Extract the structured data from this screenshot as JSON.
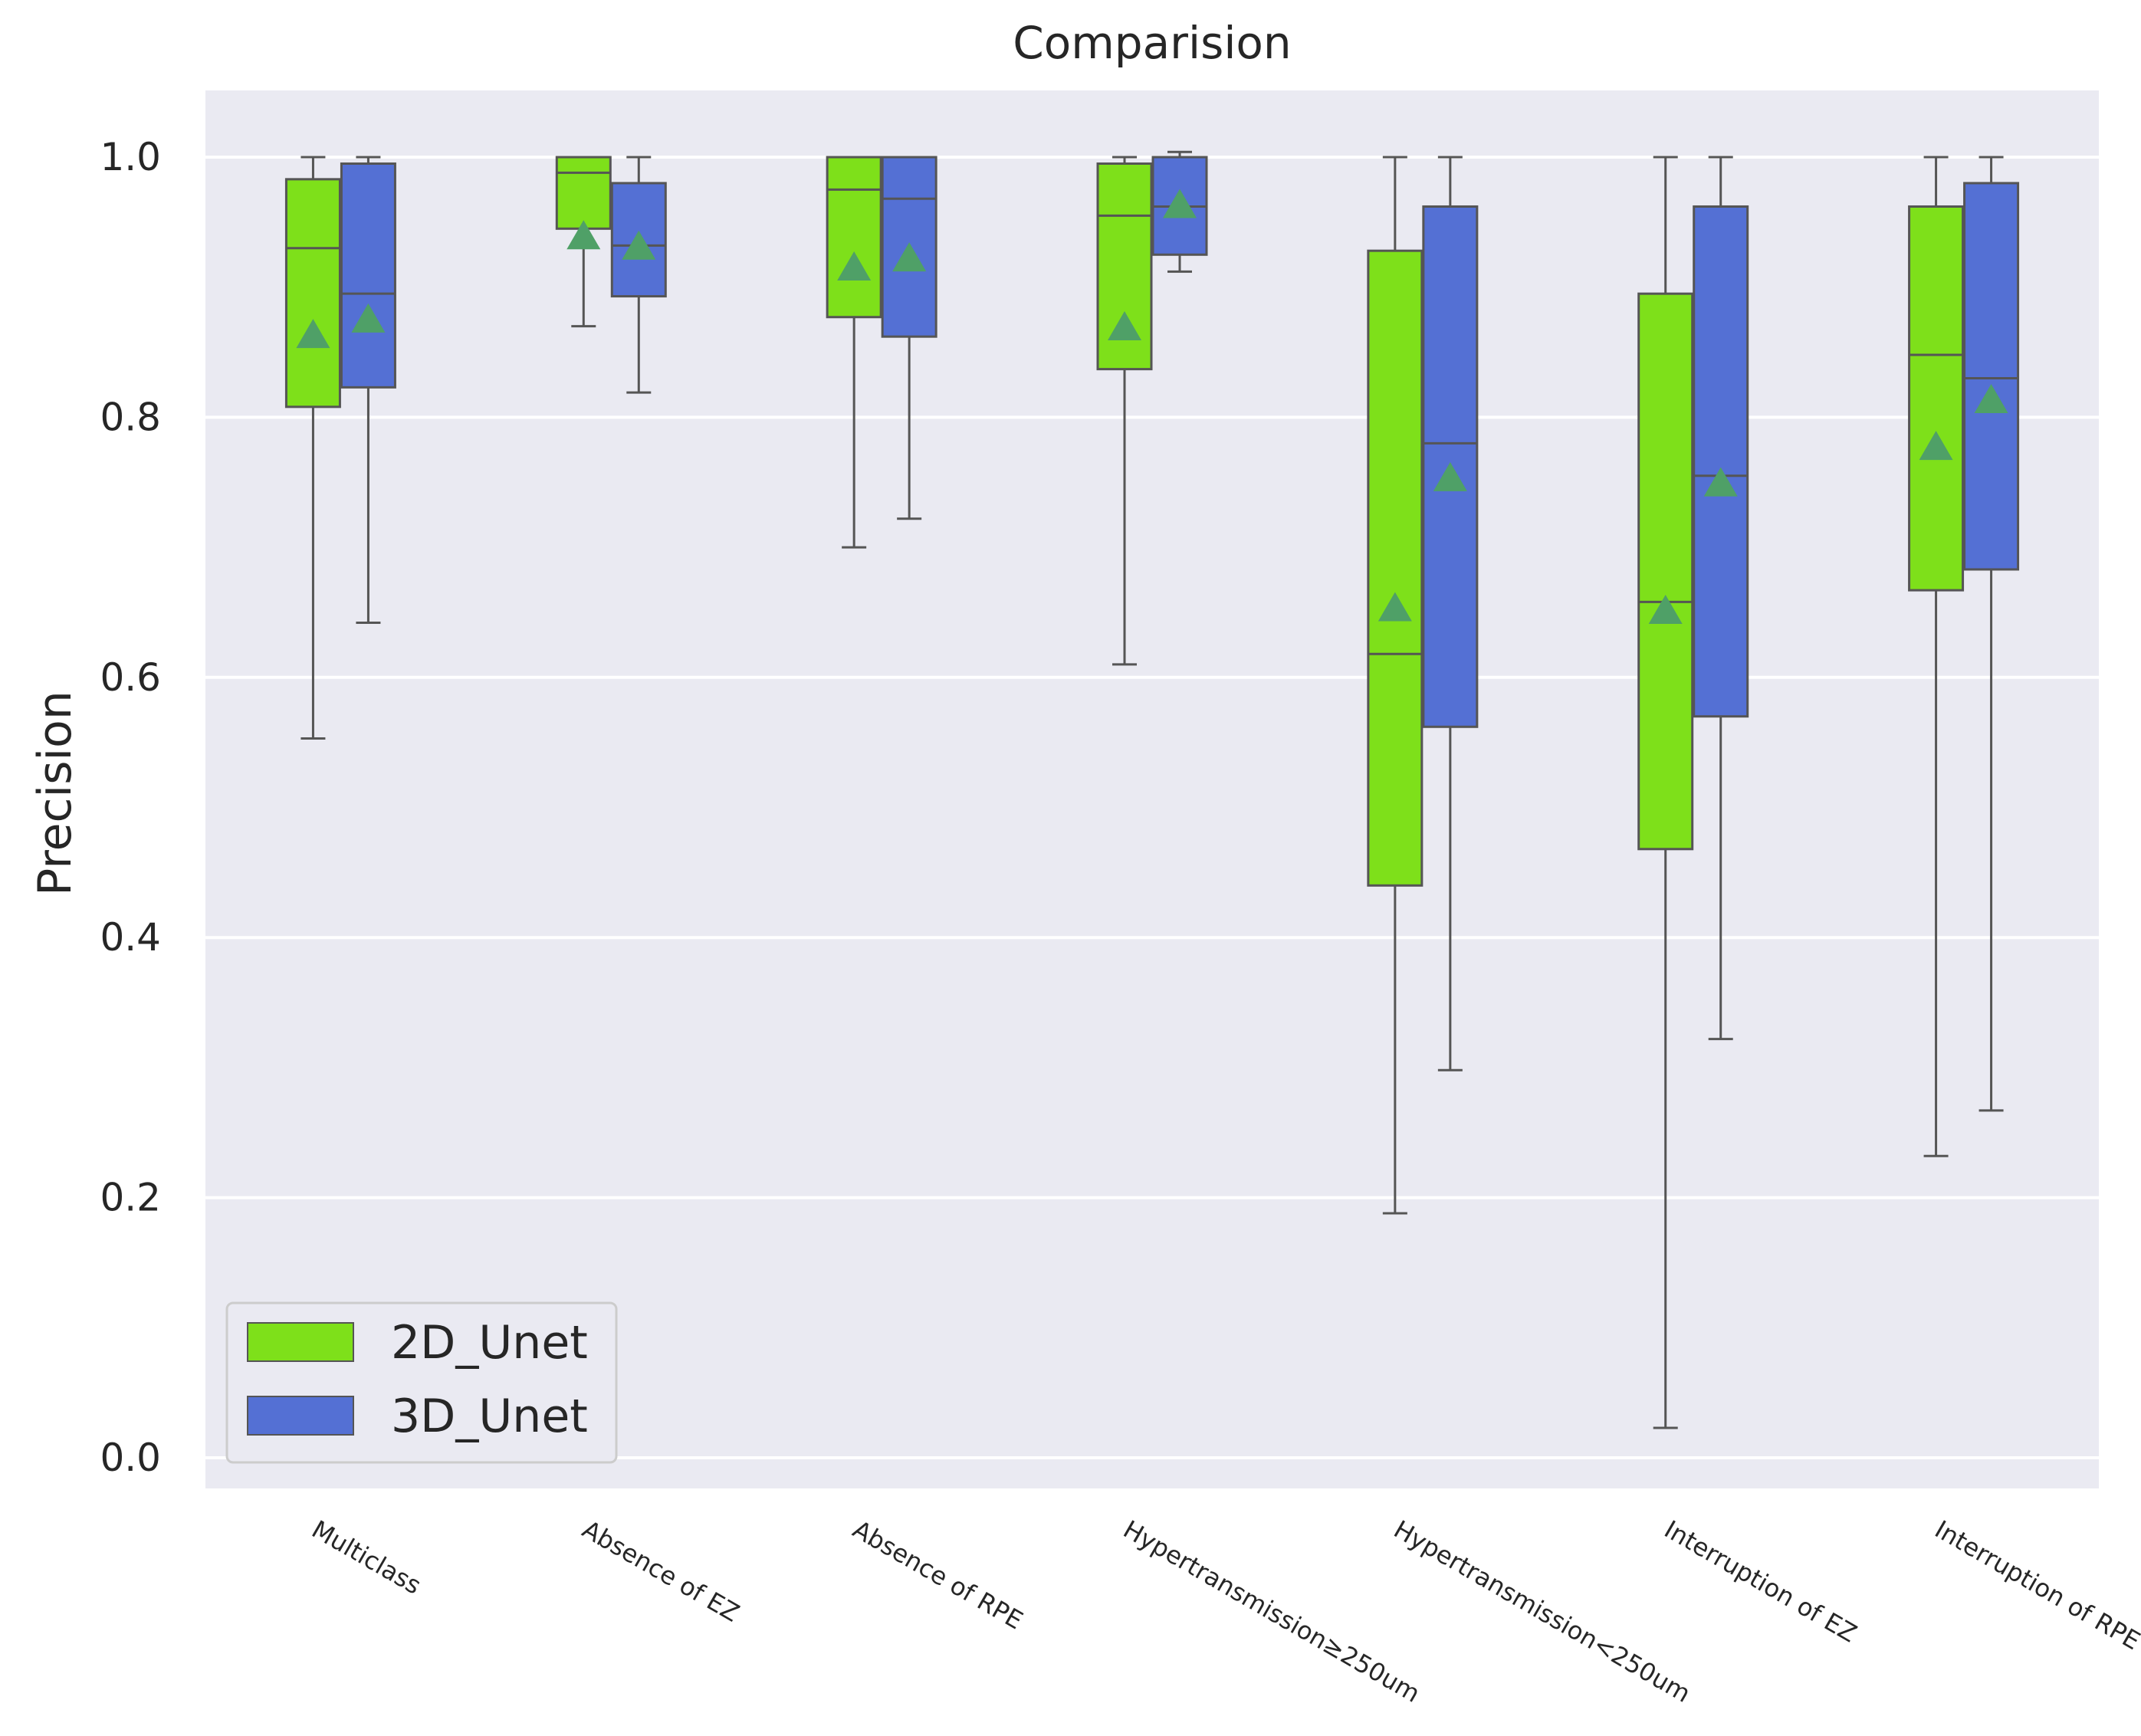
{
  "chart_data": {
    "type": "box",
    "title": "Comparision",
    "xlabel": "",
    "ylabel": "Precision",
    "ylim": [
      -0.022,
      1.05
    ],
    "yticks": [
      "0.0",
      "0.2",
      "0.4",
      "0.6",
      "0.8",
      "1.0"
    ],
    "grid": true,
    "legend_position": "lower-left",
    "categories": [
      "Multiclass",
      "Absence of EZ",
      "Absence of RPE",
      "Hypertransmission≥250um",
      "Hypertransmission<250um",
      "Interruption of EZ",
      "Interruption of RPE"
    ],
    "series": [
      {
        "name": "2D_Unet",
        "color": "#7ee01a",
        "boxes": [
          {
            "whislo": 0.553,
            "q1": 0.808,
            "med": 0.93,
            "q3": 0.983,
            "whishi": 1.0,
            "mean": 0.862
          },
          {
            "whislo": 0.87,
            "q1": 0.945,
            "med": 0.988,
            "q3": 1.0,
            "whishi": 1.0,
            "mean": 0.938
          },
          {
            "whislo": 0.7,
            "q1": 0.877,
            "med": 0.975,
            "q3": 1.0,
            "whishi": 1.0,
            "mean": 0.914
          },
          {
            "whislo": 0.61,
            "q1": 0.837,
            "med": 0.955,
            "q3": 0.995,
            "whishi": 1.0,
            "mean": 0.868
          },
          {
            "whislo": 0.188,
            "q1": 0.44,
            "med": 0.618,
            "q3": 0.928,
            "whishi": 1.0,
            "mean": 0.652
          },
          {
            "whislo": 0.023,
            "q1": 0.468,
            "med": 0.658,
            "q3": 0.895,
            "whishi": 1.0,
            "mean": 0.65
          },
          {
            "whislo": 0.232,
            "q1": 0.667,
            "med": 0.848,
            "q3": 0.962,
            "whishi": 1.0,
            "mean": 0.776
          }
        ]
      },
      {
        "name": "3D_Unet",
        "color": "#5470d4",
        "boxes": [
          {
            "whislo": 0.642,
            "q1": 0.823,
            "med": 0.895,
            "q3": 0.995,
            "whishi": 1.0,
            "mean": 0.874
          },
          {
            "whislo": 0.819,
            "q1": 0.893,
            "med": 0.932,
            "q3": 0.98,
            "whishi": 1.0,
            "mean": 0.93
          },
          {
            "whislo": 0.722,
            "q1": 0.862,
            "med": 0.968,
            "q3": 1.0,
            "whishi": 1.0,
            "mean": 0.921
          },
          {
            "whislo": 0.912,
            "q1": 0.925,
            "med": 0.962,
            "q3": 1.0,
            "whishi": 1.004,
            "mean": 0.962
          },
          {
            "whislo": 0.298,
            "q1": 0.562,
            "med": 0.78,
            "q3": 0.962,
            "whishi": 1.0,
            "mean": 0.752
          },
          {
            "whislo": 0.322,
            "q1": 0.57,
            "med": 0.755,
            "q3": 0.962,
            "whishi": 1.0,
            "mean": 0.748
          },
          {
            "whislo": 0.267,
            "q1": 0.683,
            "med": 0.83,
            "q3": 0.98,
            "whishi": 1.0,
            "mean": 0.812
          }
        ]
      }
    ],
    "colors": {
      "background": "#eaeaf2",
      "grid": "#ffffff",
      "line": "#555555",
      "mean_marker": "#4fa067"
    }
  }
}
